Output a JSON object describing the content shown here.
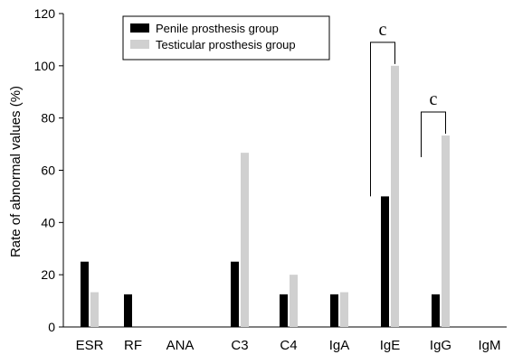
{
  "chart_data": {
    "type": "bar",
    "ylabel": "Rate of abnormal values (%)",
    "xlabel": "",
    "ylim": [
      0,
      120
    ],
    "yticks": [
      0,
      20,
      40,
      60,
      80,
      100,
      120
    ],
    "grid": false,
    "legend_position": "top-center",
    "categories": [
      "ESR",
      "RF",
      "ANA",
      "C3",
      "C4",
      "IgA",
      "IgE",
      "IgG",
      "IgM"
    ],
    "series": [
      {
        "name": "Penile prosthesis group",
        "color": "#000000",
        "values": [
          25,
          12.5,
          0,
          25,
          12.5,
          12.5,
          50,
          12.5,
          0
        ]
      },
      {
        "name": "Testicular prosthesis group",
        "color": "#d0d0d0",
        "values": [
          13.3,
          0,
          0,
          66.7,
          20,
          13.3,
          100,
          73.3,
          0
        ]
      }
    ],
    "annotations": [
      {
        "text": "c",
        "category": "IgE",
        "bracket_from": 50,
        "bracket_to": 100
      },
      {
        "text": "c",
        "category": "IgG",
        "bracket_from": 65,
        "bracket_to": 73.3
      }
    ]
  }
}
